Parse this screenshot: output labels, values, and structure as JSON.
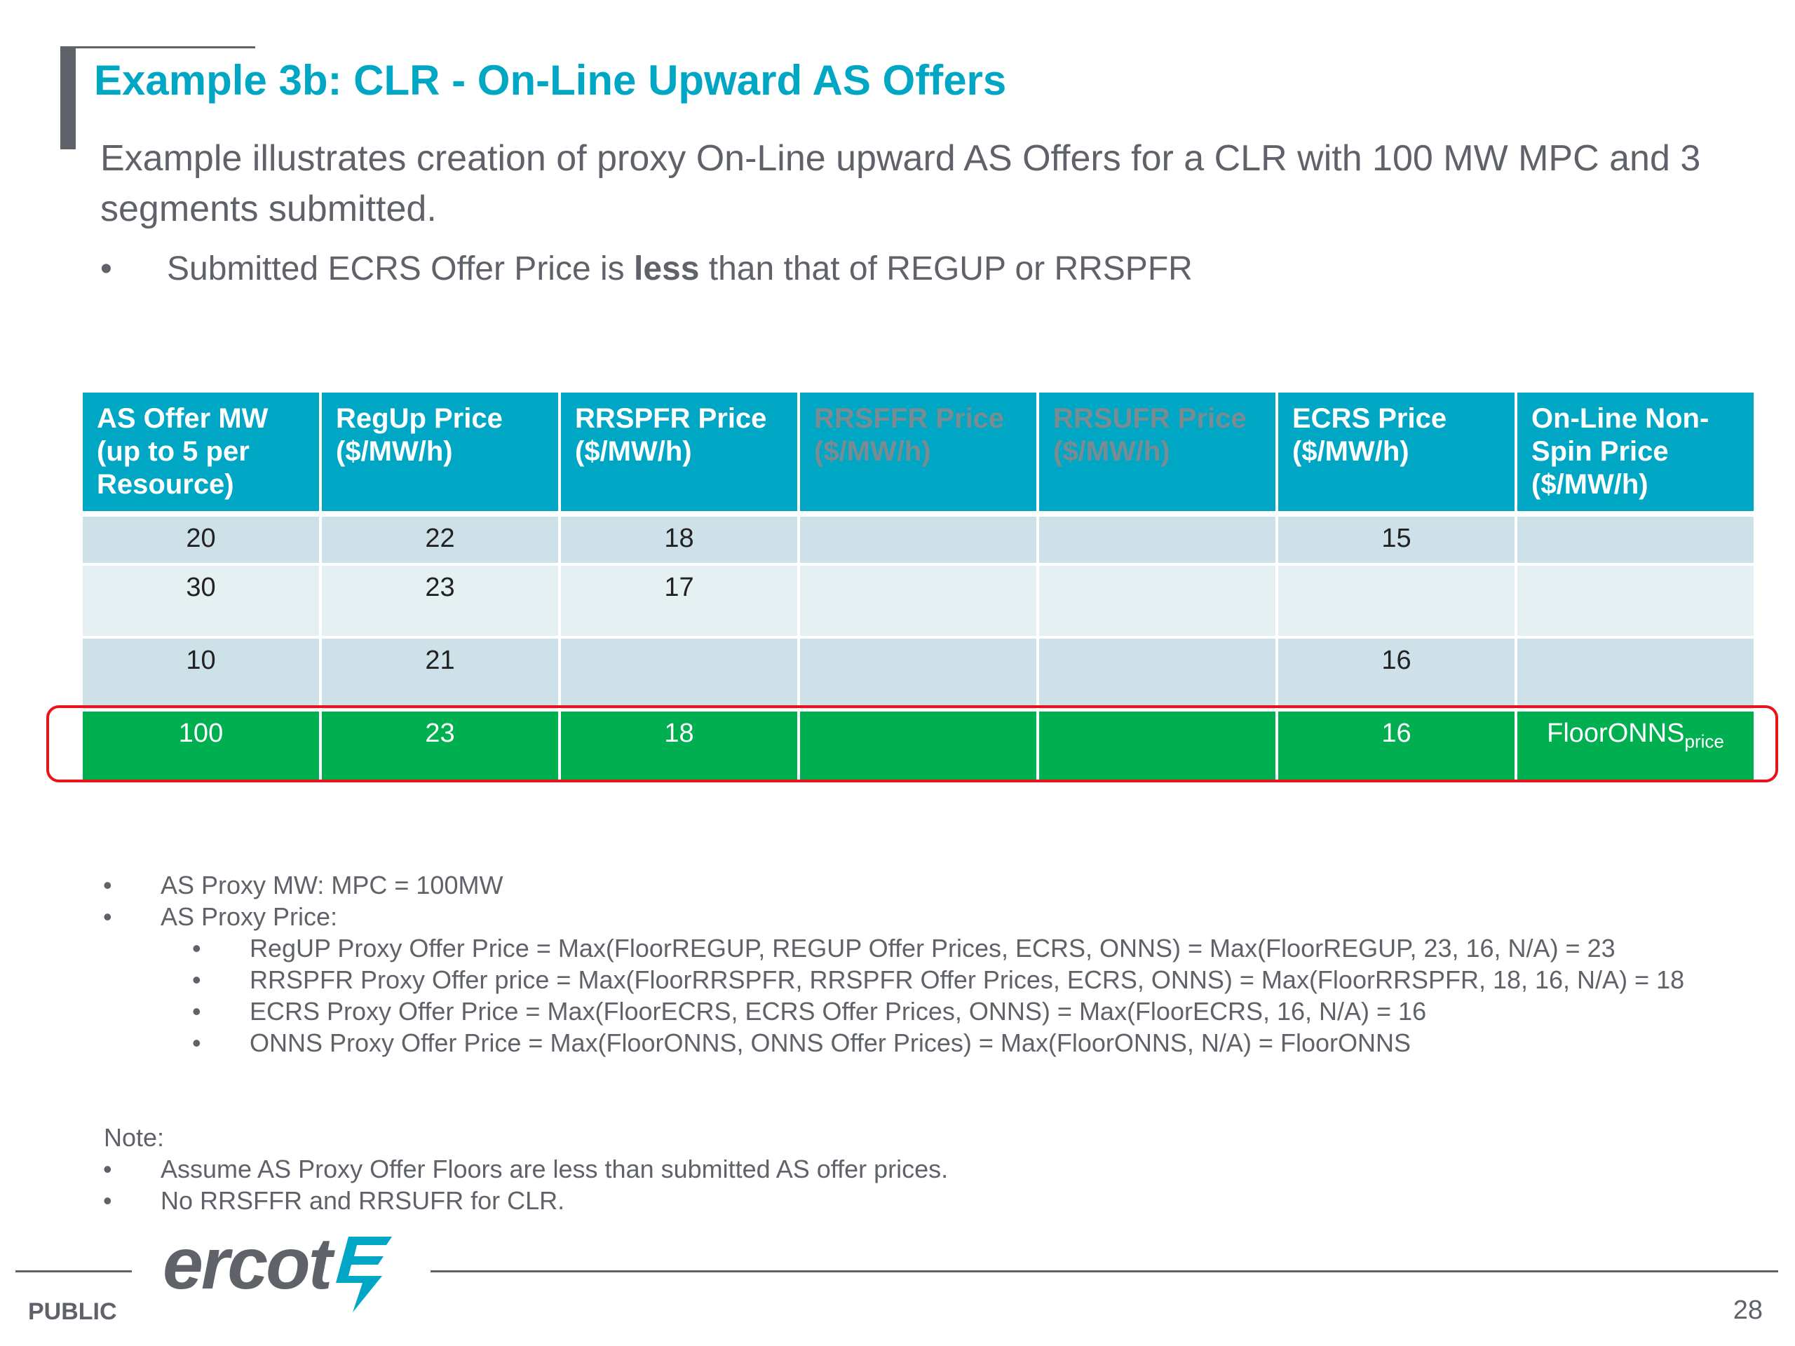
{
  "slide": {
    "title": "Example 3b: CLR - On-Line Upward AS Offers",
    "intro": "Example illustrates creation of proxy On-Line upward AS Offers for a CLR with 100 MW MPC and 3 segments submitted.",
    "sub_bullet": {
      "marker": "•",
      "before": "Submitted ECRS Offer Price is ",
      "bold": "less",
      "after": " than that of REGUP or RRSPFR"
    }
  },
  "table": {
    "headers": [
      "AS Offer MW (up to 5 per Resource)",
      "RegUp Price ($/MW/h)",
      "RRSPFR Price ($/MW/h)",
      "RRSFFR Price ($/MW/h)",
      "RRSUFR Price ($/MW/h)",
      "ECRS Price ($/MW/h)",
      "On-Line Non-Spin Price ($/MW/h)"
    ],
    "rows": [
      [
        "20",
        "22",
        "18",
        "",
        "",
        "15",
        ""
      ],
      [
        "30",
        "23",
        "17",
        "",
        "",
        "",
        ""
      ],
      [
        "10",
        "21",
        "",
        "",
        "",
        "16",
        ""
      ],
      [
        "100",
        "23",
        "18",
        "",
        "",
        "16",
        "FloorONNS"
      ]
    ],
    "proxy_row_subscript": "price",
    "colors": {
      "header_bg": "#00a7c4",
      "row_alt_1": "#cfe1e8",
      "row_alt_2": "#e5f0f3",
      "proxy_row_bg": "#00b050",
      "highlight_border": "#e8141b"
    }
  },
  "notes": {
    "bullets": [
      {
        "level": 1,
        "text": "AS Proxy MW: MPC = 100MW"
      },
      {
        "level": 1,
        "text": "AS Proxy Price:"
      },
      {
        "level": 2,
        "text": "RegUP Proxy Offer Price = Max(FloorREGUP, REGUP Offer Prices, ECRS, ONNS) = Max(FloorREGUP, 23, 16, N/A) = 23"
      },
      {
        "level": 2,
        "text": "RRSPFR Proxy Offer price = Max(FloorRRSPFR, RRSPFR Offer Prices, ECRS, ONNS) = Max(FloorRRSPFR, 18, 16, N/A) = 18"
      },
      {
        "level": 2,
        "text": "ECRS Proxy Offer Price = Max(FloorECRS, ECRS Offer Prices, ONNS) = Max(FloorECRS, 16, N/A) = 16"
      },
      {
        "level": 2,
        "text": "ONNS Proxy Offer Price = Max(FloorONNS, ONNS Offer Prices) = Max(FloorONNS, N/A) = FloorONNS"
      }
    ],
    "note_heading": "Note:",
    "note_bullets": [
      "Assume AS Proxy Offer Floors are less than submitted AS offer prices.",
      "No RRSFFR and RRSUFR for CLR."
    ]
  },
  "footer": {
    "logo_text": "ercot",
    "logo_icon": "lightning-bolt-icon",
    "classification": "PUBLIC",
    "page_number": "28"
  }
}
